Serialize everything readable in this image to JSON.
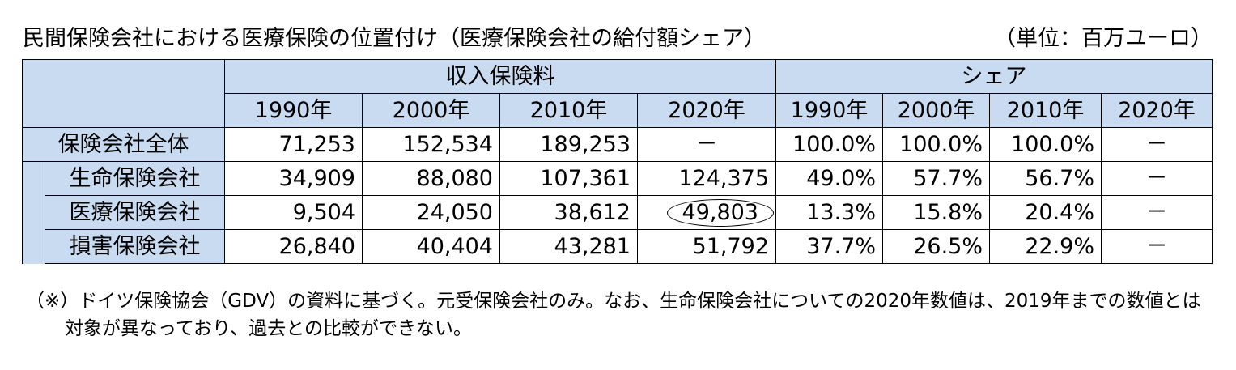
{
  "title": "民間保険会社における医療保険の位置付け（医療保険会社の給付額シェア）",
  "unit": "（単位：百万ユーロ）",
  "table": {
    "group_headers": {
      "premiums": "収入保険料",
      "share": "シェア"
    },
    "years": [
      "1990年",
      "2000年",
      "2010年",
      "2020年"
    ],
    "rows": [
      {
        "label": "保険会社全体",
        "premiums": [
          "71,253",
          "152,534",
          "189,253",
          "－"
        ],
        "share": [
          "100.0%",
          "100.0%",
          "100.0%",
          "－"
        ]
      },
      {
        "label": "生命保険会社",
        "premiums": [
          "34,909",
          "88,080",
          "107,361",
          "124,375"
        ],
        "share": [
          "49.0%",
          "57.7%",
          "56.7%",
          "－"
        ]
      },
      {
        "label": "医療保険会社",
        "premiums": [
          "9,504",
          "24,050",
          "38,612",
          "49,803"
        ],
        "share": [
          "13.3%",
          "15.8%",
          "20.4%",
          "－"
        ]
      },
      {
        "label": "損害保険会社",
        "premiums": [
          "26,840",
          "40,404",
          "43,281",
          "51,792"
        ],
        "share": [
          "37.7%",
          "26.5%",
          "22.9%",
          "－"
        ]
      }
    ]
  },
  "note": {
    "line1": "（※）ドイツ保険協会（GDV）の資料に基づく。元受保険会社のみ。なお、生命保険会社についての2020年数値は、2019年までの数値とは",
    "line2": "対象が異なっており、過去との比較ができない。"
  }
}
